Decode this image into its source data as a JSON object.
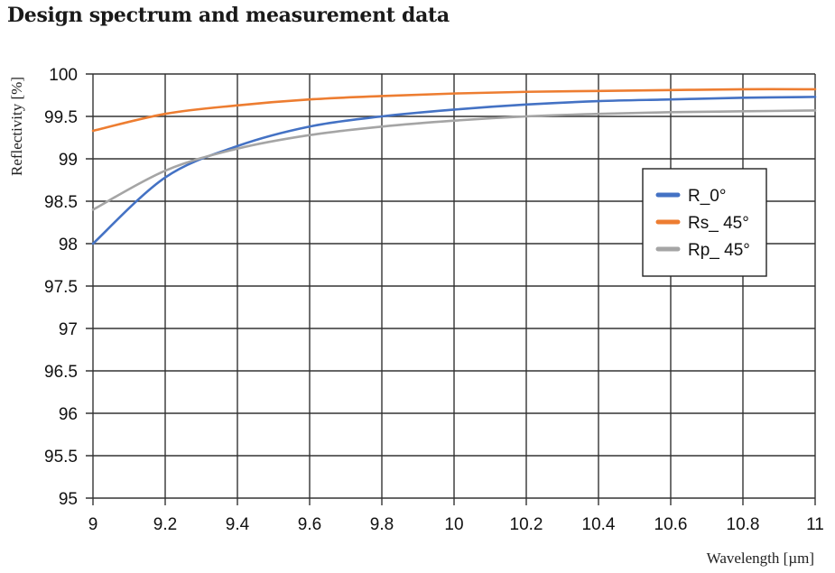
{
  "title": "Design spectrum and measurement data",
  "chart_data": {
    "type": "line",
    "title": "Design spectrum and measurement data",
    "xlabel": "Wavelength [µm]",
    "ylabel": "Reflectivity [%]",
    "xlim": [
      9,
      11
    ],
    "ylim": [
      95,
      100
    ],
    "grid": true,
    "legend_position": "right-middle, inside plot",
    "x_ticks": [
      "9",
      "9.2",
      "9.4",
      "9.6",
      "9.8",
      "10",
      "10.2",
      "10.4",
      "10.6",
      "10.8",
      "11"
    ],
    "y_ticks": [
      "95",
      "95.5",
      "96",
      "96.5",
      "97",
      "97.5",
      "98",
      "98.5",
      "99",
      "99.5",
      "100"
    ],
    "x": [
      9.0,
      9.2,
      9.4,
      9.6,
      9.8,
      10.0,
      10.2,
      10.4,
      10.6,
      10.8,
      11.0
    ],
    "series": [
      {
        "name": "R_0°",
        "color": "#4472c4",
        "values": [
          98.0,
          98.78,
          99.15,
          99.38,
          99.5,
          99.58,
          99.64,
          99.68,
          99.7,
          99.72,
          99.73
        ]
      },
      {
        "name": "Rs_ 45°",
        "color": "#ed7d31",
        "values": [
          99.33,
          99.53,
          99.63,
          99.7,
          99.74,
          99.77,
          99.79,
          99.8,
          99.81,
          99.82,
          99.82
        ]
      },
      {
        "name": "Rp_ 45°",
        "color": "#a5a5a5",
        "values": [
          98.4,
          98.86,
          99.12,
          99.28,
          99.38,
          99.45,
          99.5,
          99.53,
          99.55,
          99.56,
          99.57
        ]
      }
    ]
  }
}
